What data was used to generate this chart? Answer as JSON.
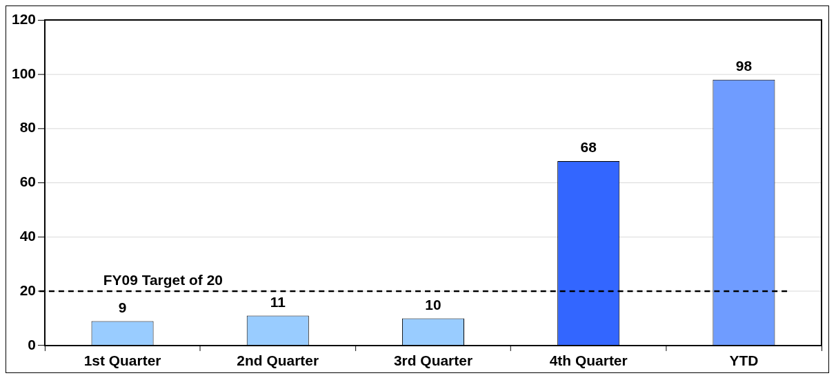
{
  "chart_data": {
    "type": "bar",
    "categories": [
      "1st Quarter",
      "2nd Quarter",
      "3rd Quarter",
      "4th Quarter",
      "YTD"
    ],
    "values": [
      9,
      11,
      10,
      68,
      98
    ],
    "colors": [
      "#99ccff",
      "#99ccff",
      "#99ccff",
      "#3366ff",
      "#6f9cff"
    ],
    "ylim": [
      0,
      120
    ],
    "yticks": [
      0,
      20,
      40,
      60,
      80,
      100,
      120
    ],
    "grid": "y",
    "data_labels": true,
    "legend": false,
    "ref_lines": [
      {
        "axis": "y",
        "value": 20,
        "label": "FY09 Target of 20",
        "color": "#000000",
        "line_style": "dashed"
      }
    ]
  }
}
